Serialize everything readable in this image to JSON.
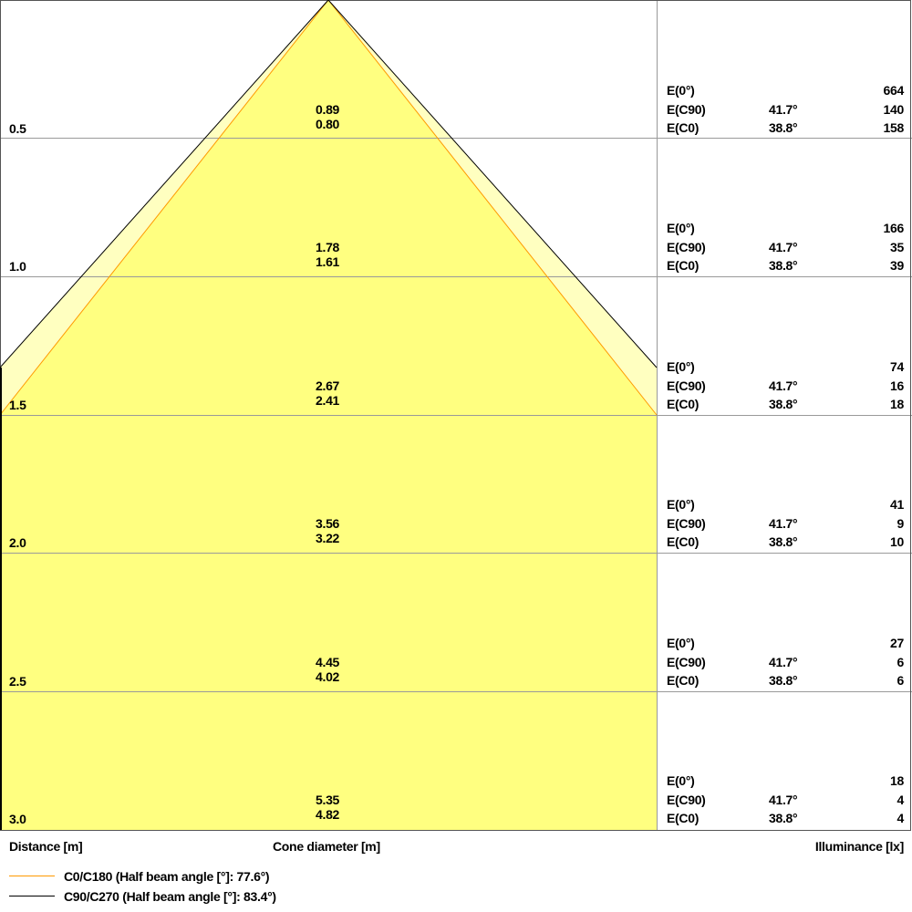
{
  "colors": {
    "c0_line": "#ff9900",
    "c90_line": "#000000",
    "cone_inner": "#ffff80",
    "cone_outer": "#ffffc0",
    "grid": "#9a9a9a"
  },
  "labels": {
    "distance": "Distance [m]",
    "cone_diameter": "Cone diameter [m]",
    "illuminance": "Illuminance [lx]"
  },
  "legend": [
    {
      "label": "C0/C180 (Half beam angle [°]: 77.6°)",
      "color": "#ff9900"
    },
    {
      "label": "C90/C270 (Half beam angle [°]: 83.4°)",
      "color": "#000000"
    }
  ],
  "half_beam_angles": {
    "c0_c180": 77.6,
    "c90_c270": 83.4
  },
  "rows": [
    {
      "distance": "0.5",
      "d_c90": "0.89",
      "d_c0": "0.80",
      "e0_label": "E(0°)",
      "e0": "664",
      "ec90_label": "E(C90)",
      "ec90_angle": "41.7°",
      "ec90": "140",
      "ec0_label": "E(C0)",
      "ec0_angle": "38.8°",
      "ec0": "158"
    },
    {
      "distance": "1.0",
      "d_c90": "1.78",
      "d_c0": "1.61",
      "e0_label": "E(0°)",
      "e0": "166",
      "ec90_label": "E(C90)",
      "ec90_angle": "41.7°",
      "ec90": "35",
      "ec0_label": "E(C0)",
      "ec0_angle": "38.8°",
      "ec0": "39"
    },
    {
      "distance": "1.5",
      "d_c90": "2.67",
      "d_c0": "2.41",
      "e0_label": "E(0°)",
      "e0": "74",
      "ec90_label": "E(C90)",
      "ec90_angle": "41.7°",
      "ec90": "16",
      "ec0_label": "E(C0)",
      "ec0_angle": "38.8°",
      "ec0": "18"
    },
    {
      "distance": "2.0",
      "d_c90": "3.56",
      "d_c0": "3.22",
      "e0_label": "E(0°)",
      "e0": "41",
      "ec90_label": "E(C90)",
      "ec90_angle": "41.7°",
      "ec90": "9",
      "ec0_label": "E(C0)",
      "ec0_angle": "38.8°",
      "ec0": "10"
    },
    {
      "distance": "2.5",
      "d_c90": "4.45",
      "d_c0": "4.02",
      "e0_label": "E(0°)",
      "e0": "27",
      "ec90_label": "E(C90)",
      "ec90_angle": "41.7°",
      "ec90": "6",
      "ec0_label": "E(C0)",
      "ec0_angle": "38.8°",
      "ec0": "6"
    },
    {
      "distance": "3.0",
      "d_c90": "5.35",
      "d_c0": "4.82",
      "e0_label": "E(0°)",
      "e0": "18",
      "ec90_label": "E(C90)",
      "ec90_angle": "41.7°",
      "ec90": "4",
      "ec0_label": "E(C0)",
      "ec0_angle": "38.8°",
      "ec0": "4"
    }
  ]
}
